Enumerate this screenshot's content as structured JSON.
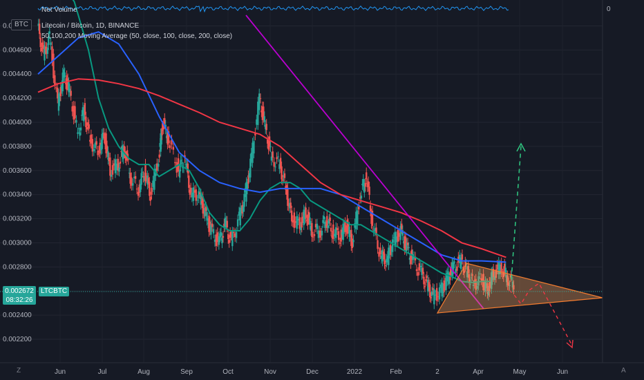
{
  "chart_data": {
    "type": "line",
    "title": "Litecoin / Bitcoin, 1D, BINANCE",
    "indicator": "50,100,200 Moving Average (50, close, 100, close, 200, close)",
    "volume_label": "Net Volume",
    "volume_zero": "0",
    "currency": "BTC",
    "symbol": "LTCBTC",
    "last_price": "0.002672",
    "countdown": "08:32:26",
    "y_ticks": [
      "0.004800",
      "0.004600",
      "0.004400",
      "0.004200",
      "0.004000",
      "0.003800",
      "0.003600",
      "0.003400",
      "0.003200",
      "0.003000",
      "0.002800",
      "0.002600",
      "0.002400",
      "0.002200"
    ],
    "x_ticks": [
      "Jun",
      "Jul",
      "Aug",
      "Sep",
      "Oct",
      "Nov",
      "Dec",
      "2022",
      "Feb",
      "2",
      "Apr",
      "May",
      "Jun"
    ],
    "ylim": [
      0.002,
      0.005
    ],
    "grid": true,
    "series": [
      {
        "name": "Price",
        "color": "#ef5350",
        "points": [
          [
            0,
            0.0048
          ],
          [
            0.3,
            0.00455
          ],
          [
            0.6,
            0.0047
          ],
          [
            1,
            0.00415
          ],
          [
            1.3,
            0.0044
          ],
          [
            1.6,
            0.00425
          ],
          [
            2,
            0.0039
          ],
          [
            2.3,
            0.0041
          ],
          [
            2.6,
            0.00385
          ],
          [
            3,
            0.00375
          ],
          [
            3.3,
            0.0039
          ],
          [
            3.6,
            0.0036
          ],
          [
            4,
            0.00365
          ],
          [
            4.3,
            0.0038
          ],
          [
            4.6,
            0.00355
          ],
          [
            5,
            0.00345
          ],
          [
            5.3,
            0.0036
          ],
          [
            5.6,
            0.0034
          ],
          [
            6,
            0.0037
          ],
          [
            6.2,
            0.004
          ],
          [
            6.5,
            0.00385
          ],
          [
            7,
            0.0036
          ],
          [
            7.3,
            0.0037
          ],
          [
            7.6,
            0.0034
          ],
          [
            8,
            0.0034
          ],
          [
            8.3,
            0.00325
          ],
          [
            8.6,
            0.0031
          ],
          [
            9,
            0.003
          ],
          [
            9.3,
            0.00315
          ],
          [
            9.6,
            0.003
          ],
          [
            10,
            0.0032
          ],
          [
            10.3,
            0.0034
          ],
          [
            10.6,
            0.0037
          ],
          [
            11,
            0.0042
          ],
          [
            11.3,
            0.00395
          ],
          [
            11.6,
            0.0037
          ],
          [
            12,
            0.00365
          ],
          [
            12.3,
            0.00345
          ],
          [
            12.6,
            0.0032
          ],
          [
            13,
            0.00315
          ],
          [
            13.3,
            0.00325
          ],
          [
            13.6,
            0.0031
          ],
          [
            14,
            0.0031
          ],
          [
            14.3,
            0.0032
          ],
          [
            14.6,
            0.0031
          ],
          [
            15,
            0.00305
          ],
          [
            15.3,
            0.00315
          ],
          [
            15.6,
            0.003
          ],
          [
            16,
            0.0034
          ],
          [
            16.3,
            0.00355
          ],
          [
            16.6,
            0.00315
          ],
          [
            17,
            0.0029
          ],
          [
            17.3,
            0.00285
          ],
          [
            17.6,
            0.003
          ],
          [
            18,
            0.0031
          ],
          [
            18.3,
            0.00295
          ],
          [
            18.6,
            0.00285
          ],
          [
            19,
            0.00275
          ],
          [
            19.3,
            0.00265
          ],
          [
            19.6,
            0.00255
          ],
          [
            20,
            0.0026
          ],
          [
            20.3,
            0.0027
          ],
          [
            20.6,
            0.0028
          ],
          [
            21,
            0.00285
          ],
          [
            21.3,
            0.00275
          ],
          [
            21.6,
            0.00265
          ],
          [
            22,
            0.0027
          ],
          [
            22.3,
            0.0026
          ],
          [
            22.6,
            0.00275
          ],
          [
            23,
            0.0028
          ],
          [
            23.3,
            0.0027
          ],
          [
            23.6,
            0.00267
          ]
        ]
      },
      {
        "name": "MA 50",
        "color": "#089981",
        "points": [
          [
            0,
            0.0051
          ],
          [
            1,
            0.0052
          ],
          [
            1.8,
            0.005
          ],
          [
            2.5,
            0.0046
          ],
          [
            3,
            0.0042
          ],
          [
            3.5,
            0.00395
          ],
          [
            4,
            0.0038
          ],
          [
            4.5,
            0.0037
          ],
          [
            5,
            0.00365
          ],
          [
            5.5,
            0.00365
          ],
          [
            6,
            0.00355
          ],
          [
            6.5,
            0.0036
          ],
          [
            7,
            0.00365
          ],
          [
            7.5,
            0.0036
          ],
          [
            8,
            0.00345
          ],
          [
            8.5,
            0.00325
          ],
          [
            9,
            0.00315
          ],
          [
            9.5,
            0.0031
          ],
          [
            10,
            0.0031
          ],
          [
            10.5,
            0.0032
          ],
          [
            11,
            0.00335
          ],
          [
            11.5,
            0.00345
          ],
          [
            12,
            0.0035
          ],
          [
            12.5,
            0.0035
          ],
          [
            13,
            0.00345
          ],
          [
            13.5,
            0.00335
          ],
          [
            14,
            0.0033
          ],
          [
            14.5,
            0.00325
          ],
          [
            15,
            0.0032
          ],
          [
            15.5,
            0.00315
          ],
          [
            16,
            0.00315
          ],
          [
            16.5,
            0.0031
          ],
          [
            17,
            0.00305
          ],
          [
            17.5,
            0.003
          ],
          [
            18,
            0.00295
          ],
          [
            18.5,
            0.0029
          ],
          [
            19,
            0.00285
          ],
          [
            19.5,
            0.0028
          ],
          [
            20,
            0.00275
          ],
          [
            20.5,
            0.00272
          ],
          [
            21,
            0.00268
          ],
          [
            21.5,
            0.00267
          ],
          [
            22,
            0.00268
          ],
          [
            22.4,
            0.00268
          ]
        ]
      },
      {
        "name": "MA 100",
        "color": "#2962ff",
        "points": [
          [
            0,
            0.0044
          ],
          [
            1,
            0.00455
          ],
          [
            2,
            0.0047
          ],
          [
            3,
            0.00475
          ],
          [
            4,
            0.00465
          ],
          [
            5,
            0.0044
          ],
          [
            6,
            0.00405
          ],
          [
            7,
            0.00375
          ],
          [
            8,
            0.0036
          ],
          [
            9,
            0.0035
          ],
          [
            10,
            0.00345
          ],
          [
            11,
            0.00342
          ],
          [
            12,
            0.00345
          ],
          [
            13,
            0.00345
          ],
          [
            14,
            0.00345
          ],
          [
            15,
            0.0034
          ],
          [
            16,
            0.0033
          ],
          [
            17,
            0.0032
          ],
          [
            18,
            0.0031
          ],
          [
            19,
            0.003
          ],
          [
            20,
            0.0029
          ],
          [
            21,
            0.00285
          ],
          [
            22,
            0.00285
          ],
          [
            23.2,
            0.00284
          ]
        ]
      },
      {
        "name": "MA 200",
        "color": "#f23645",
        "points": [
          [
            0,
            0.00425
          ],
          [
            1,
            0.00432
          ],
          [
            2,
            0.00436
          ],
          [
            3,
            0.00435
          ],
          [
            4,
            0.00432
          ],
          [
            5,
            0.00428
          ],
          [
            6,
            0.00422
          ],
          [
            7,
            0.00415
          ],
          [
            8,
            0.00408
          ],
          [
            9,
            0.004
          ],
          [
            10,
            0.00395
          ],
          [
            11,
            0.0039
          ],
          [
            12,
            0.0038
          ],
          [
            13,
            0.00365
          ],
          [
            14,
            0.0035
          ],
          [
            15,
            0.0034
          ],
          [
            16,
            0.00335
          ],
          [
            17,
            0.0033
          ],
          [
            18,
            0.00325
          ],
          [
            19,
            0.00318
          ],
          [
            20,
            0.0031
          ],
          [
            21,
            0.003
          ],
          [
            22,
            0.00295
          ],
          [
            23.2,
            0.00288
          ]
        ]
      }
    ]
  }
}
